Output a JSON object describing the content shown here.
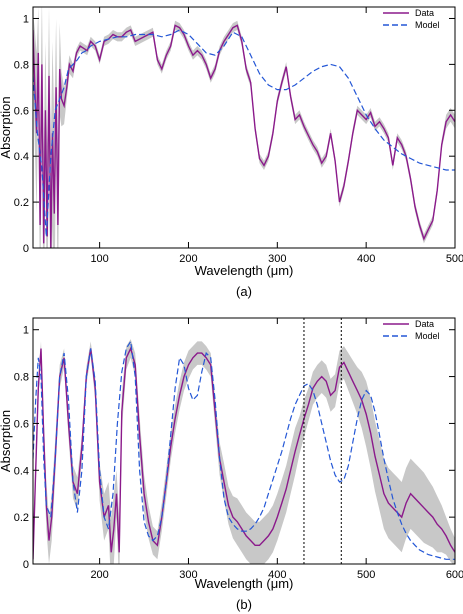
{
  "chart_data": [
    {
      "type": "line",
      "panel_label": "(a)",
      "xlabel": "Wavelength (μm)",
      "ylabel": "Absorption",
      "xlim": [
        25,
        500
      ],
      "ylim": [
        0,
        1.05
      ],
      "xticks": [
        100,
        200,
        300,
        400,
        500
      ],
      "yticks": [
        0,
        0.2,
        0.4,
        0.6,
        0.8,
        1
      ],
      "legend_position": "top-right",
      "grid": false,
      "series": [
        {
          "name": "Data",
          "color": "#8b1a8b",
          "style": "solid",
          "band_color": "#c8c8c8",
          "x": [
            25,
            27,
            29,
            31,
            33,
            35,
            37,
            39,
            41,
            43,
            45,
            47,
            49,
            51,
            53,
            55,
            57,
            60,
            63,
            66,
            70,
            74,
            78,
            82,
            86,
            90,
            95,
            100,
            105,
            110,
            115,
            120,
            125,
            130,
            135,
            140,
            145,
            150,
            155,
            160,
            165,
            170,
            175,
            180,
            185,
            190,
            195,
            200,
            205,
            210,
            215,
            220,
            225,
            230,
            235,
            240,
            245,
            250,
            255,
            260,
            265,
            270,
            275,
            280,
            285,
            290,
            295,
            300,
            305,
            310,
            315,
            320,
            325,
            330,
            335,
            340,
            345,
            350,
            355,
            360,
            365,
            370,
            375,
            380,
            385,
            390,
            395,
            400,
            405,
            410,
            415,
            420,
            425,
            430,
            435,
            440,
            445,
            450,
            455,
            460,
            465,
            470,
            475,
            480,
            485,
            490,
            495,
            500
          ],
          "y": [
            0.95,
            0.7,
            0.5,
            0.85,
            0.1,
            0.8,
            0.02,
            0.6,
            0.05,
            0.75,
            0.0,
            0.5,
            0.15,
            0.7,
            0.1,
            0.78,
            0.65,
            0.62,
            0.7,
            0.8,
            0.77,
            0.85,
            0.88,
            0.87,
            0.86,
            0.9,
            0.88,
            0.82,
            0.9,
            0.91,
            0.93,
            0.92,
            0.92,
            0.94,
            0.95,
            0.9,
            0.91,
            0.92,
            0.93,
            0.94,
            0.82,
            0.78,
            0.84,
            0.88,
            0.97,
            0.96,
            0.93,
            0.88,
            0.84,
            0.86,
            0.84,
            0.8,
            0.74,
            0.78,
            0.86,
            0.9,
            0.93,
            0.96,
            0.97,
            0.9,
            0.78,
            0.72,
            0.52,
            0.39,
            0.36,
            0.4,
            0.5,
            0.64,
            0.72,
            0.79,
            0.66,
            0.56,
            0.58,
            0.53,
            0.49,
            0.45,
            0.42,
            0.37,
            0.4,
            0.5,
            0.38,
            0.2,
            0.27,
            0.38,
            0.5,
            0.6,
            0.58,
            0.56,
            0.59,
            0.53,
            0.55,
            0.52,
            0.48,
            0.36,
            0.48,
            0.45,
            0.4,
            0.3,
            0.18,
            0.1,
            0.04,
            0.08,
            0.12,
            0.25,
            0.45,
            0.55,
            0.58,
            0.55
          ],
          "spread": [
            0.08,
            0.25,
            0.35,
            0.2,
            0.4,
            0.3,
            0.4,
            0.3,
            0.4,
            0.3,
            0.45,
            0.4,
            0.4,
            0.3,
            0.35,
            0.2,
            0.12,
            0.08,
            0.05,
            0.04,
            0.03,
            0.02,
            0.02,
            0.02,
            0.02,
            0.02,
            0.02,
            0.02,
            0.02,
            0.02,
            0.02,
            0.02,
            0.02,
            0.02,
            0.02,
            0.02,
            0.02,
            0.02,
            0.02,
            0.02,
            0.02,
            0.02,
            0.02,
            0.02,
            0.02,
            0.02,
            0.02,
            0.02,
            0.02,
            0.02,
            0.02,
            0.02,
            0.02,
            0.02,
            0.02,
            0.02,
            0.02,
            0.02,
            0.02,
            0.02,
            0.02,
            0.02,
            0.02,
            0.02,
            0.02,
            0.02,
            0.02,
            0.02,
            0.02,
            0.02,
            0.02,
            0.02,
            0.02,
            0.02,
            0.02,
            0.02,
            0.02,
            0.02,
            0.02,
            0.02,
            0.02,
            0.02,
            0.02,
            0.02,
            0.02,
            0.02,
            0.02,
            0.02,
            0.02,
            0.02,
            0.02,
            0.02,
            0.02,
            0.02,
            0.02,
            0.02,
            0.02,
            0.02,
            0.02,
            0.02,
            0.02,
            0.02,
            0.02,
            0.02,
            0.02,
            0.03,
            0.03,
            0.03
          ]
        },
        {
          "name": "Model",
          "color": "#2457d6",
          "style": "dashed",
          "x": [
            25,
            30,
            35,
            40,
            45,
            50,
            55,
            60,
            65,
            70,
            75,
            80,
            85,
            90,
            100,
            110,
            120,
            130,
            140,
            150,
            160,
            170,
            180,
            190,
            200,
            210,
            220,
            230,
            240,
            250,
            260,
            270,
            280,
            290,
            300,
            310,
            320,
            330,
            340,
            350,
            360,
            370,
            380,
            390,
            400,
            410,
            420,
            430,
            440,
            450,
            460,
            470,
            480,
            490,
            500
          ],
          "y": [
            0.75,
            0.5,
            0.35,
            0.05,
            0.4,
            0.6,
            0.65,
            0.7,
            0.78,
            0.8,
            0.82,
            0.85,
            0.86,
            0.88,
            0.9,
            0.91,
            0.92,
            0.92,
            0.93,
            0.93,
            0.93,
            0.92,
            0.93,
            0.95,
            0.93,
            0.89,
            0.85,
            0.84,
            0.88,
            0.94,
            0.92,
            0.84,
            0.76,
            0.71,
            0.69,
            0.69,
            0.71,
            0.74,
            0.77,
            0.79,
            0.8,
            0.79,
            0.74,
            0.66,
            0.58,
            0.52,
            0.47,
            0.44,
            0.41,
            0.39,
            0.37,
            0.36,
            0.35,
            0.34,
            0.34
          ]
        }
      ]
    },
    {
      "type": "line",
      "panel_label": "(b)",
      "xlabel": "Wavelength (μm)",
      "ylabel": "Absorption",
      "xlim": [
        125,
        600
      ],
      "ylim": [
        0,
        1.05
      ],
      "xticks": [
        200,
        300,
        400,
        500,
        600
      ],
      "yticks": [
        0,
        0.2,
        0.4,
        0.6,
        0.8,
        1
      ],
      "vlines": [
        430,
        472
      ],
      "legend_position": "top-right",
      "grid": false,
      "series": [
        {
          "name": "Data",
          "color": "#8b1a8b",
          "style": "solid",
          "band_color": "#c8c8c8",
          "x": [
            125,
            128,
            131,
            134,
            137,
            140,
            143,
            146,
            150,
            155,
            160,
            165,
            170,
            175,
            180,
            185,
            190,
            195,
            200,
            205,
            210,
            213,
            216,
            219,
            222,
            225,
            230,
            235,
            240,
            245,
            250,
            255,
            260,
            265,
            270,
            275,
            280,
            285,
            290,
            295,
            300,
            305,
            310,
            315,
            320,
            325,
            330,
            335,
            340,
            345,
            350,
            355,
            360,
            365,
            370,
            375,
            380,
            385,
            390,
            395,
            400,
            405,
            410,
            415,
            420,
            425,
            430,
            435,
            440,
            445,
            450,
            455,
            460,
            465,
            470,
            475,
            480,
            485,
            490,
            495,
            500,
            505,
            510,
            515,
            520,
            525,
            530,
            535,
            540,
            545,
            550,
            555,
            560,
            565,
            570,
            575,
            580,
            585,
            590,
            595,
            600
          ],
          "y": [
            0.02,
            0.4,
            0.75,
            0.92,
            0.55,
            0.25,
            0.1,
            0.2,
            0.45,
            0.8,
            0.88,
            0.6,
            0.35,
            0.3,
            0.5,
            0.8,
            0.92,
            0.75,
            0.35,
            0.2,
            0.25,
            0.05,
            0.15,
            0.3,
            0.05,
            0.65,
            0.88,
            0.92,
            0.85,
            0.55,
            0.3,
            0.18,
            0.1,
            0.08,
            0.2,
            0.35,
            0.5,
            0.62,
            0.72,
            0.8,
            0.85,
            0.88,
            0.9,
            0.9,
            0.88,
            0.85,
            0.65,
            0.45,
            0.35,
            0.25,
            0.2,
            0.18,
            0.15,
            0.12,
            0.1,
            0.08,
            0.08,
            0.1,
            0.12,
            0.15,
            0.2,
            0.26,
            0.32,
            0.4,
            0.48,
            0.55,
            0.62,
            0.68,
            0.75,
            0.78,
            0.8,
            0.78,
            0.72,
            0.74,
            0.84,
            0.86,
            0.82,
            0.78,
            0.74,
            0.7,
            0.64,
            0.56,
            0.46,
            0.38,
            0.3,
            0.26,
            0.24,
            0.22,
            0.2,
            0.26,
            0.3,
            0.28,
            0.26,
            0.24,
            0.22,
            0.2,
            0.17,
            0.15,
            0.12,
            0.08,
            0.05
          ],
          "spread": [
            0.05,
            0.08,
            0.05,
            0.03,
            0.08,
            0.1,
            0.1,
            0.1,
            0.08,
            0.05,
            0.04,
            0.06,
            0.07,
            0.07,
            0.05,
            0.04,
            0.03,
            0.05,
            0.08,
            0.1,
            0.1,
            0.15,
            0.15,
            0.1,
            0.15,
            0.08,
            0.05,
            0.04,
            0.05,
            0.08,
            0.08,
            0.07,
            0.06,
            0.06,
            0.06,
            0.06,
            0.06,
            0.06,
            0.06,
            0.06,
            0.06,
            0.05,
            0.05,
            0.05,
            0.05,
            0.05,
            0.06,
            0.07,
            0.08,
            0.08,
            0.09,
            0.1,
            0.1,
            0.1,
            0.1,
            0.1,
            0.1,
            0.1,
            0.1,
            0.1,
            0.1,
            0.1,
            0.1,
            0.1,
            0.1,
            0.08,
            0.08,
            0.07,
            0.07,
            0.07,
            0.07,
            0.07,
            0.07,
            0.07,
            0.07,
            0.07,
            0.08,
            0.09,
            0.1,
            0.12,
            0.14,
            0.15,
            0.15,
            0.15,
            0.15,
            0.15,
            0.15,
            0.15,
            0.15,
            0.15,
            0.15,
            0.15,
            0.15,
            0.15,
            0.14,
            0.13,
            0.12,
            0.1,
            0.08,
            0.07,
            0.06
          ]
        },
        {
          "name": "Model",
          "color": "#2457d6",
          "style": "dashed",
          "x": [
            125,
            128,
            131,
            134,
            137,
            140,
            145,
            150,
            155,
            160,
            165,
            170,
            175,
            180,
            185,
            190,
            195,
            200,
            205,
            210,
            215,
            220,
            225,
            230,
            235,
            240,
            245,
            250,
            255,
            260,
            265,
            270,
            275,
            280,
            285,
            290,
            295,
            300,
            305,
            310,
            315,
            320,
            325,
            330,
            335,
            340,
            345,
            350,
            355,
            360,
            365,
            370,
            375,
            380,
            385,
            390,
            395,
            400,
            405,
            410,
            415,
            420,
            425,
            430,
            435,
            440,
            445,
            450,
            455,
            460,
            465,
            470,
            475,
            480,
            485,
            490,
            495,
            500,
            505,
            510,
            515,
            520,
            525,
            530,
            535,
            540,
            545,
            550,
            555,
            560,
            570,
            580,
            590,
            600
          ],
          "y": [
            0.45,
            0.7,
            0.88,
            0.8,
            0.45,
            0.25,
            0.2,
            0.45,
            0.8,
            0.9,
            0.7,
            0.35,
            0.22,
            0.4,
            0.8,
            0.92,
            0.78,
            0.4,
            0.2,
            0.15,
            0.3,
            0.6,
            0.82,
            0.92,
            0.95,
            0.8,
            0.4,
            0.18,
            0.12,
            0.1,
            0.12,
            0.2,
            0.35,
            0.55,
            0.75,
            0.88,
            0.85,
            0.75,
            0.7,
            0.72,
            0.82,
            0.9,
            0.88,
            0.7,
            0.45,
            0.28,
            0.2,
            0.17,
            0.15,
            0.14,
            0.14,
            0.15,
            0.17,
            0.2,
            0.24,
            0.3,
            0.36,
            0.42,
            0.48,
            0.55,
            0.62,
            0.68,
            0.72,
            0.76,
            0.77,
            0.74,
            0.68,
            0.6,
            0.52,
            0.44,
            0.38,
            0.35,
            0.36,
            0.42,
            0.52,
            0.62,
            0.7,
            0.74,
            0.72,
            0.65,
            0.55,
            0.45,
            0.36,
            0.28,
            0.22,
            0.17,
            0.13,
            0.1,
            0.08,
            0.06,
            0.04,
            0.03,
            0.02,
            0.02
          ]
        }
      ]
    }
  ]
}
